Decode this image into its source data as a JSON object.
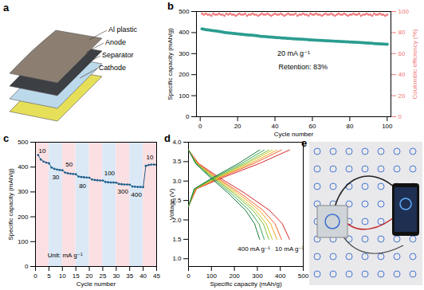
{
  "chart_data": [
    {
      "type": "scatter",
      "title": "b",
      "xlabel": "Cycle number",
      "ylabel": "Specific capacity (mAh/g)",
      "y2label": "Coulombic efficiency (%)",
      "xlim": [
        -2,
        102
      ],
      "xticks": [
        0,
        20,
        40,
        60,
        80,
        100
      ],
      "ylim": [
        0,
        500
      ],
      "yticks": [
        0,
        100,
        200,
        300,
        400,
        500
      ],
      "y2lim": [
        0,
        100
      ],
      "y2ticks": [
        0,
        20,
        40,
        60,
        80,
        100
      ],
      "x": [
        1,
        2,
        3,
        4,
        5,
        6,
        7,
        8,
        9,
        10,
        11,
        12,
        13,
        14,
        15,
        16,
        17,
        18,
        19,
        20,
        21,
        22,
        23,
        24,
        25,
        26,
        27,
        28,
        29,
        30,
        31,
        32,
        33,
        34,
        35,
        36,
        37,
        38,
        39,
        40,
        41,
        42,
        43,
        44,
        45,
        46,
        47,
        48,
        49,
        50,
        51,
        52,
        53,
        54,
        55,
        56,
        57,
        58,
        59,
        60,
        61,
        62,
        63,
        64,
        65,
        66,
        67,
        68,
        69,
        70,
        71,
        72,
        73,
        74,
        75,
        76,
        77,
        78,
        79,
        80,
        81,
        82,
        83,
        84,
        85,
        86,
        87,
        88,
        89,
        90,
        91,
        92,
        93,
        94,
        95,
        96,
        97,
        98,
        99,
        100
      ],
      "series": [
        {
          "type": "scatter",
          "marker": "circle",
          "color": "#2a9d8f",
          "values": [
            418,
            416,
            414,
            413,
            412,
            410,
            409,
            408,
            407,
            405,
            404,
            402,
            401,
            400,
            399,
            398,
            397,
            396,
            395,
            394,
            393,
            392,
            391,
            390,
            389,
            388,
            388,
            387,
            386,
            385,
            384,
            383,
            382,
            382,
            381,
            380,
            379,
            379,
            378,
            377,
            376,
            376,
            375,
            374,
            374,
            373,
            372,
            372,
            371,
            370,
            370,
            369,
            369,
            368,
            368,
            367,
            367,
            366,
            366,
            365,
            365,
            364,
            364,
            363,
            363,
            362,
            362,
            361,
            361,
            360,
            360,
            359,
            359,
            358,
            358,
            357,
            357,
            356,
            356,
            355,
            355,
            354,
            354,
            353,
            353,
            352,
            352,
            351,
            350,
            350,
            349,
            349,
            348,
            348,
            347,
            347,
            346,
            346,
            345,
            345
          ]
        },
        {
          "type": "line",
          "marker": "circle",
          "color": "#f07878",
          "axis": "y2",
          "values": [
            98,
            97,
            98,
            97,
            97,
            96,
            98,
            97,
            97,
            98,
            97,
            97,
            96,
            98,
            97,
            98,
            97,
            97,
            96,
            97,
            98,
            97,
            97,
            98,
            96,
            97,
            97,
            98,
            97,
            97,
            96,
            97,
            98,
            97,
            97,
            98,
            97,
            96,
            97,
            98,
            97,
            97,
            98,
            97,
            96,
            97,
            98,
            97,
            97,
            97,
            98,
            96,
            97,
            97,
            98,
            97,
            97,
            96,
            98,
            97,
            97,
            98,
            97,
            97,
            96,
            97,
            98,
            97,
            97,
            98,
            97,
            96,
            97,
            98,
            97,
            97,
            98,
            97,
            96,
            97,
            97,
            98,
            97,
            97,
            98,
            96,
            97,
            97,
            98,
            97,
            97,
            96,
            98,
            97,
            97,
            98,
            97,
            97,
            96,
            97
          ]
        }
      ],
      "annotations": [
        {
          "text": "20 mA g⁻¹",
          "x": 50,
          "y": 300
        },
        {
          "text": "Retention: 83%",
          "x": 55,
          "y": 235
        }
      ]
    },
    {
      "type": "line",
      "title": "c",
      "xlabel": "Cycle number",
      "ylabel": "Specific capacity (mAh/g)",
      "xlim": [
        0,
        45
      ],
      "xticks": [
        0,
        5,
        10,
        15,
        20,
        25,
        30,
        35,
        40,
        45
      ],
      "ylim": [
        0,
        500
      ],
      "yticks": [
        0,
        100,
        200,
        300,
        400,
        500
      ],
      "marker": "circle",
      "color": "#1f5f8b",
      "x": [
        1,
        2,
        3,
        4,
        5,
        6,
        7,
        8,
        9,
        10,
        11,
        12,
        13,
        14,
        15,
        16,
        17,
        18,
        19,
        20,
        21,
        22,
        23,
        24,
        25,
        26,
        27,
        28,
        29,
        30,
        31,
        32,
        33,
        34,
        35,
        36,
        37,
        38,
        39,
        40,
        41,
        42,
        43,
        44,
        45
      ],
      "values": [
        448,
        430,
        422,
        418,
        415,
        398,
        393,
        390,
        388,
        387,
        378,
        375,
        373,
        372,
        371,
        362,
        360,
        359,
        358,
        357,
        350,
        348,
        347,
        346,
        346,
        340,
        339,
        338,
        338,
        337,
        332,
        331,
        330,
        330,
        329,
        322,
        321,
        320,
        320,
        319,
        405,
        408,
        410,
        410,
        409
      ],
      "bands": [
        [
          0,
          5
        ],
        [
          5,
          10
        ],
        [
          10,
          15
        ],
        [
          15,
          20
        ],
        [
          20,
          25
        ],
        [
          25,
          30
        ],
        [
          30,
          35
        ],
        [
          35,
          40
        ],
        [
          40,
          45
        ]
      ],
      "annotations": [
        {
          "text": "10",
          "x": 2.5,
          "y": 465
        },
        {
          "text": "30",
          "x": 7.5,
          "y": 360
        },
        {
          "text": "50",
          "x": 12.5,
          "y": 410
        },
        {
          "text": "80",
          "x": 17.5,
          "y": 325
        },
        {
          "text": "100",
          "x": 27.5,
          "y": 375
        },
        {
          "text": "300",
          "x": 32.5,
          "y": 300
        },
        {
          "text": "400",
          "x": 37.5,
          "y": 290
        },
        {
          "text": "10",
          "x": 42.5,
          "y": 440
        },
        {
          "text": "Unit: mA g⁻¹",
          "x": 11,
          "y": 45
        }
      ]
    },
    {
      "type": "line",
      "title": "d",
      "xlabel": "Specific capacity (mAh/g)",
      "ylabel": "Voltage (V)",
      "xlim": [
        0,
        500
      ],
      "xticks": [
        0,
        100,
        200,
        300,
        400,
        500
      ],
      "ylim": [
        0.8,
        4.0
      ],
      "yticks": [
        {
          "value": 1.0,
          "label": "1.0"
        },
        {
          "value": 1.5,
          "label": "1.5"
        },
        {
          "value": 2.0,
          "label": "2.0"
        },
        {
          "value": 2.5,
          "label": "2.5"
        },
        {
          "value": 3.0,
          "label": "3.0"
        },
        {
          "value": 3.5,
          "label": "3.5"
        },
        {
          "value": 4.0,
          "label": "4.0"
        }
      ],
      "series": [
        {
          "color": "#d62728",
          "x": [
            0,
            44,
            132,
            242,
            352,
            409,
            440
          ],
          "values": [
            3.8,
            3.45,
            3.1,
            2.7,
            2.25,
            1.9,
            1.5
          ]
        },
        {
          "color": "#d62728",
          "x": [
            0,
            35,
            154,
            308,
            440
          ],
          "values": [
            2.35,
            2.8,
            3.1,
            3.45,
            3.8
          ]
        },
        {
          "color": "#f0602a",
          "x": [
            0,
            40,
            122,
            223,
            324,
            377,
            405
          ],
          "values": [
            3.8,
            3.45,
            3.1,
            2.7,
            2.25,
            1.9,
            1.5
          ]
        },
        {
          "color": "#f0602a",
          "x": [
            0,
            32,
            142,
            284,
            405
          ],
          "values": [
            2.35,
            2.8,
            3.1,
            3.45,
            3.8
          ]
        },
        {
          "color": "#f5a623",
          "x": [
            0,
            38,
            116,
            212,
            308,
            358,
            385
          ],
          "values": [
            3.8,
            3.45,
            3.1,
            2.7,
            2.25,
            1.9,
            1.5
          ]
        },
        {
          "color": "#f5a623",
          "x": [
            0,
            31,
            135,
            270,
            385
          ],
          "values": [
            2.35,
            2.8,
            3.1,
            3.45,
            3.8
          ]
        },
        {
          "color": "#c7c926",
          "x": [
            0,
            37,
            110,
            201,
            292,
            339,
            365
          ],
          "values": [
            3.8,
            3.45,
            3.1,
            2.7,
            2.25,
            1.9,
            1.5
          ]
        },
        {
          "color": "#c7c926",
          "x": [
            0,
            29,
            128,
            256,
            365
          ],
          "values": [
            2.35,
            2.8,
            3.1,
            3.45,
            3.8
          ]
        },
        {
          "color": "#7cbf3a",
          "x": [
            0,
            35,
            105,
            193,
            280,
            326,
            350
          ],
          "values": [
            3.8,
            3.45,
            3.1,
            2.7,
            2.25,
            1.9,
            1.5
          ]
        },
        {
          "color": "#7cbf3a",
          "x": [
            0,
            28,
            123,
            245,
            350
          ],
          "values": [
            2.35,
            2.8,
            3.1,
            3.45,
            3.8
          ]
        },
        {
          "color": "#3aa655",
          "x": [
            0,
            33,
            99,
            182,
            264,
            307,
            330
          ],
          "values": [
            3.8,
            3.45,
            3.1,
            2.7,
            2.25,
            1.9,
            1.5
          ]
        },
        {
          "color": "#3aa655",
          "x": [
            0,
            26,
            116,
            231,
            330
          ],
          "values": [
            2.35,
            2.8,
            3.1,
            3.45,
            3.8
          ]
        },
        {
          "color": "#1b7a3a",
          "x": [
            0,
            31,
            93,
            171,
            248,
            288,
            310
          ],
          "values": [
            3.8,
            3.45,
            3.1,
            2.7,
            2.25,
            1.9,
            1.5
          ]
        },
        {
          "color": "#1b7a3a",
          "x": [
            0,
            25,
            109,
            217,
            310
          ],
          "values": [
            2.35,
            2.8,
            3.1,
            3.45,
            3.8
          ]
        }
      ],
      "annotations": [
        {
          "text": "400 mA g⁻¹",
          "x": 285,
          "y": 1.25
        },
        {
          "text": "10 mA g⁻¹",
          "x": 440,
          "y": 1.25
        }
      ]
    }
  ],
  "diagram": {
    "label": "a",
    "layers": [
      "Al plastic",
      "Anode",
      "Separator",
      "Cathode"
    ]
  },
  "photo": {
    "label": "e"
  }
}
